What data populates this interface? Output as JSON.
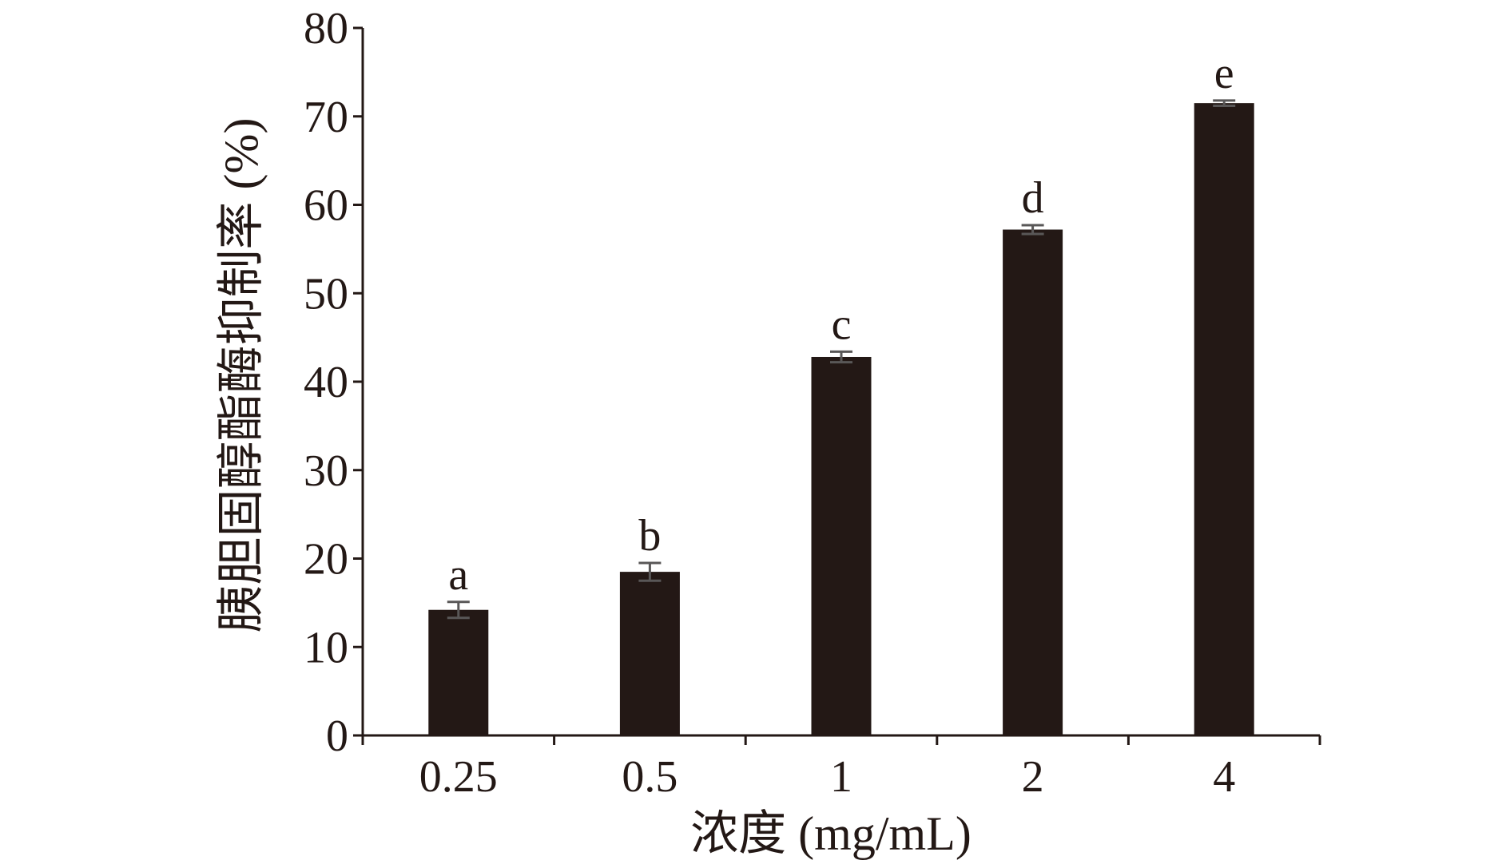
{
  "chart_data": {
    "type": "bar",
    "categories": [
      "0.25",
      "0.5",
      "1",
      "2",
      "4"
    ],
    "values": [
      14.2,
      18.5,
      42.8,
      57.2,
      71.5
    ],
    "errors": [
      0.9,
      1.0,
      0.6,
      0.5,
      0.3
    ],
    "significance_labels": [
      "a",
      "b",
      "c",
      "d",
      "e"
    ],
    "xlabel": "浓度 (mg/mL)",
    "ylabel": "胰胆固醇酯酶抑制率 (%)",
    "ylim": [
      0,
      80
    ],
    "yticks": [
      "0",
      "10",
      "20",
      "30",
      "40",
      "50",
      "60",
      "70",
      "80"
    ],
    "grid": false,
    "colors": {
      "bar": "#231815",
      "error": "#595757",
      "axis": "#231815"
    }
  }
}
